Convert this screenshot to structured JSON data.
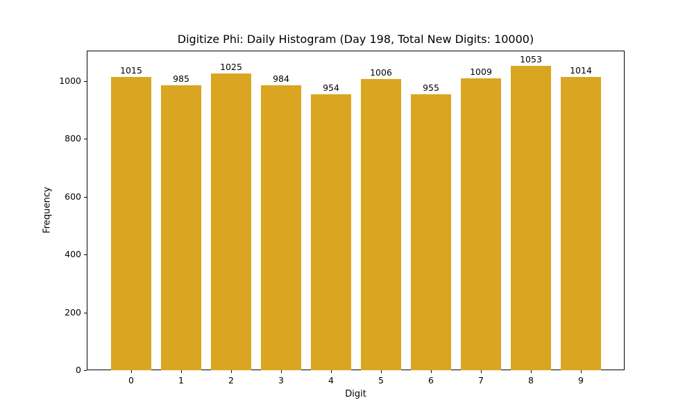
{
  "chart_data": {
    "type": "bar",
    "title": "Digitize Phi: Daily Histogram (Day 198, Total New Digits: 10000)",
    "xlabel": "Digit",
    "ylabel": "Frequency",
    "categories": [
      "0",
      "1",
      "2",
      "3",
      "4",
      "5",
      "6",
      "7",
      "8",
      "9"
    ],
    "values": [
      1015,
      985,
      1025,
      984,
      954,
      1006,
      955,
      1009,
      1053,
      1014
    ],
    "yticks": [
      0,
      200,
      400,
      600,
      800,
      1000
    ],
    "ylim": [
      0,
      1105
    ],
    "bar_color": "#DAA520",
    "grid": false,
    "legend": null
  }
}
